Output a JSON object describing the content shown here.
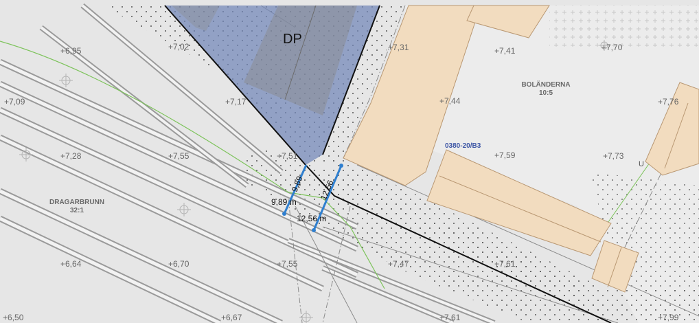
{
  "map": {
    "dp_label": "DP",
    "plan_code": "0380-20/B3",
    "properties": [
      {
        "name": "BOLÄNDERNA",
        "number": "10:5"
      },
      {
        "name": "DRAGARBRUNN",
        "number": "32:1"
      }
    ],
    "zone_letter": "U",
    "elevations": [
      "+6,95",
      "+7,02",
      "+7,31",
      "+7,41",
      "+7,70",
      "+7,09",
      "+7,17",
      "+7,44",
      "+7,76",
      "+7,28",
      "+7,55",
      "+7,51",
      "+7,59",
      "+7,73",
      "+6,64",
      "+6,70",
      "+7,55",
      "+7,47",
      "+7,61",
      "+6,50",
      "+6,67",
      "+7,61",
      "+7,99"
    ],
    "measurements": {
      "first": {
        "rotated": "9,89",
        "label": "9,89 m"
      },
      "second": {
        "rotated": "12,56",
        "label": "12,56 m"
      }
    },
    "colors": {
      "background": "#e6e6e6",
      "building": "#f2dcbf",
      "building_outline": "#b99873",
      "detail_plan_overlay": "#7187b8",
      "measure_line": "#2f7fcf",
      "boundary": "#111111",
      "green_line": "#7dc35b",
      "plan_code_text": "#3c55a5"
    }
  }
}
